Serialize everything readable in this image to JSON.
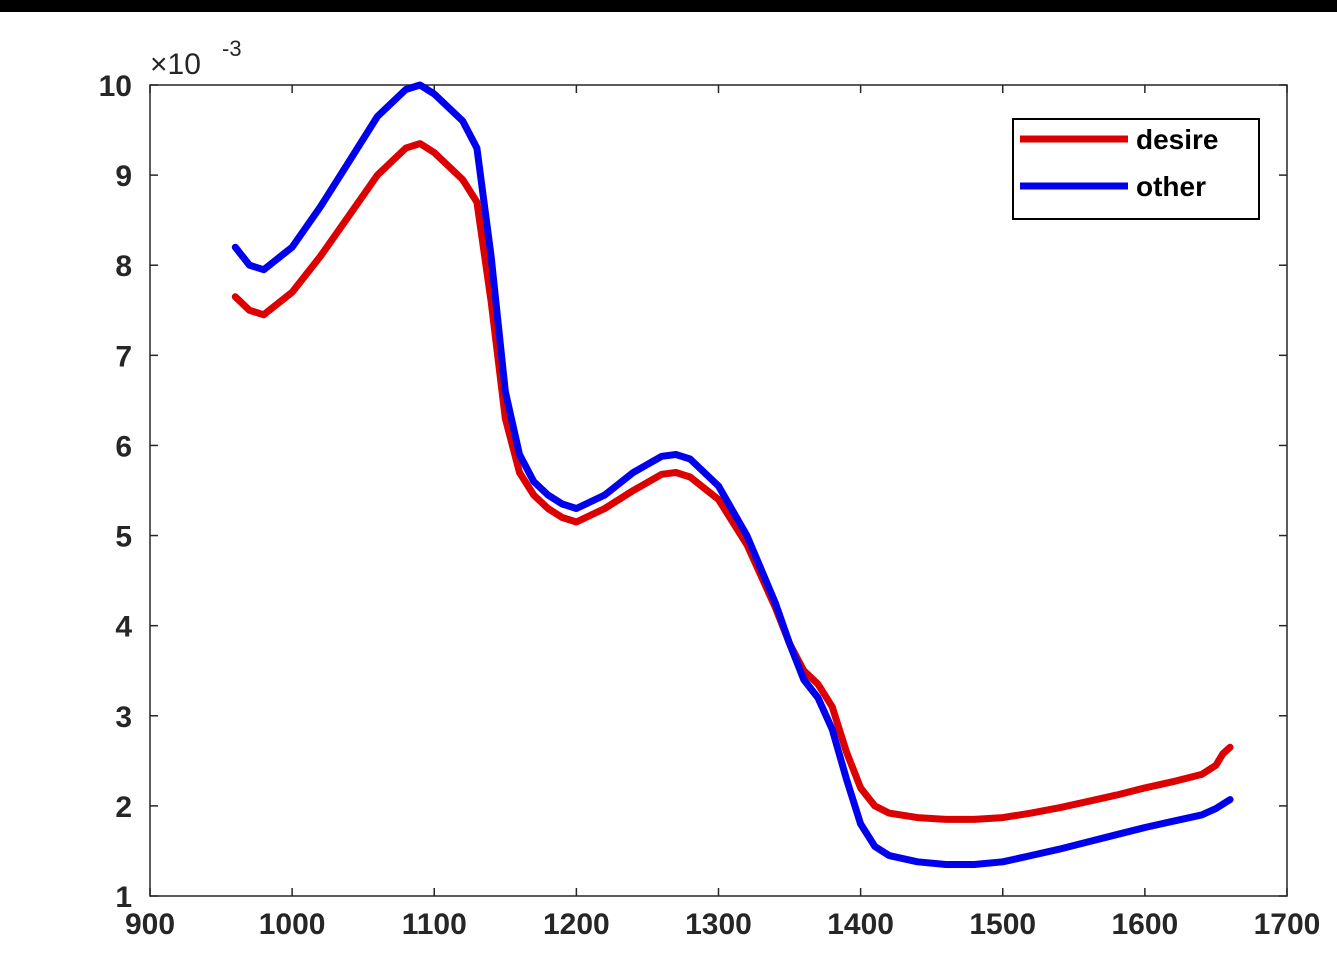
{
  "chart_data": {
    "type": "line",
    "title": "",
    "xlabel": "",
    "ylabel": "",
    "xlim": [
      900,
      1700
    ],
    "ylim": [
      1,
      10
    ],
    "x_ticks": [
      900,
      1000,
      1100,
      1200,
      1300,
      1400,
      1500,
      1600,
      1700
    ],
    "y_ticks": [
      1,
      2,
      3,
      4,
      5,
      6,
      7,
      8,
      9,
      10
    ],
    "y_multiplier": "×10",
    "y_multiplier_exponent": "-3",
    "grid": false,
    "legend_position": "top-right",
    "series": [
      {
        "name": "desire",
        "color": "#dd0000",
        "x": [
          960,
          970,
          980,
          1000,
          1020,
          1040,
          1060,
          1080,
          1090,
          1100,
          1120,
          1130,
          1140,
          1150,
          1160,
          1170,
          1180,
          1190,
          1200,
          1220,
          1240,
          1260,
          1270,
          1280,
          1300,
          1320,
          1340,
          1350,
          1360,
          1370,
          1380,
          1390,
          1400,
          1410,
          1420,
          1440,
          1460,
          1480,
          1500,
          1520,
          1540,
          1560,
          1580,
          1600,
          1620,
          1640,
          1650,
          1655,
          1660
        ],
        "y": [
          7.65,
          7.5,
          7.45,
          7.7,
          8.1,
          8.55,
          9.0,
          9.3,
          9.35,
          9.25,
          8.95,
          8.7,
          7.6,
          6.3,
          5.7,
          5.45,
          5.3,
          5.2,
          5.15,
          5.3,
          5.5,
          5.68,
          5.7,
          5.65,
          5.4,
          4.9,
          4.2,
          3.8,
          3.5,
          3.35,
          3.1,
          2.6,
          2.2,
          2.0,
          1.92,
          1.87,
          1.85,
          1.85,
          1.87,
          1.92,
          1.98,
          2.05,
          2.12,
          2.2,
          2.27,
          2.35,
          2.45,
          2.58,
          2.65
        ]
      },
      {
        "name": "other",
        "color": "#0000ee",
        "x": [
          960,
          970,
          980,
          1000,
          1020,
          1040,
          1060,
          1080,
          1090,
          1100,
          1120,
          1130,
          1140,
          1150,
          1160,
          1170,
          1180,
          1190,
          1200,
          1220,
          1240,
          1260,
          1270,
          1280,
          1300,
          1320,
          1340,
          1350,
          1360,
          1370,
          1380,
          1390,
          1400,
          1410,
          1420,
          1440,
          1460,
          1480,
          1500,
          1520,
          1540,
          1560,
          1580,
          1600,
          1620,
          1640,
          1650,
          1655,
          1660
        ],
        "y": [
          8.2,
          8.0,
          7.95,
          8.2,
          8.65,
          9.15,
          9.65,
          9.95,
          10.0,
          9.9,
          9.6,
          9.3,
          8.1,
          6.6,
          5.9,
          5.6,
          5.45,
          5.35,
          5.3,
          5.45,
          5.7,
          5.88,
          5.9,
          5.85,
          5.55,
          5.0,
          4.25,
          3.8,
          3.4,
          3.2,
          2.85,
          2.3,
          1.8,
          1.55,
          1.45,
          1.38,
          1.35,
          1.35,
          1.38,
          1.45,
          1.52,
          1.6,
          1.68,
          1.76,
          1.83,
          1.9,
          1.97,
          2.02,
          2.07
        ]
      }
    ]
  }
}
